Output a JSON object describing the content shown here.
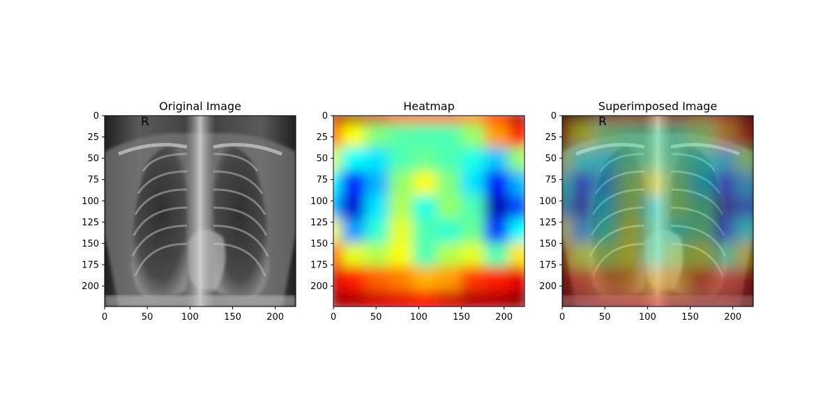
{
  "chart_data": [
    {
      "type": "heatmap",
      "title": "Original Image",
      "xlabel": "",
      "ylabel": "",
      "xlim": [
        0,
        224
      ],
      "ylim": [
        224,
        0
      ],
      "x_ticks": [
        0,
        50,
        100,
        150,
        200
      ],
      "y_ticks": [
        0,
        25,
        50,
        75,
        100,
        125,
        150,
        175,
        200
      ],
      "colormap": "gray",
      "grid": false,
      "annotations": [
        "R"
      ]
    },
    {
      "type": "heatmap",
      "title": "Heatmap",
      "xlabel": "",
      "ylabel": "",
      "xlim": [
        0,
        224
      ],
      "ylim": [
        224,
        0
      ],
      "x_ticks": [
        0,
        50,
        100,
        150,
        200
      ],
      "y_ticks": [
        0,
        25,
        50,
        75,
        100,
        125,
        150,
        175,
        200
      ],
      "colormap": "jet",
      "grid": false,
      "grid_x": [
        0,
        28,
        56,
        84,
        112,
        140,
        168,
        196,
        224
      ],
      "grid_y": [
        0,
        28,
        56,
        84,
        112,
        140,
        168,
        196,
        224
      ],
      "values": [
        [
          0.95,
          0.98,
          0.92,
          0.8,
          0.78,
          0.8,
          0.75,
          0.85,
          0.97
        ],
        [
          0.82,
          0.62,
          0.5,
          0.46,
          0.45,
          0.45,
          0.52,
          0.72,
          0.85
        ],
        [
          0.58,
          0.38,
          0.35,
          0.45,
          0.48,
          0.45,
          0.4,
          0.32,
          0.52
        ],
        [
          0.38,
          0.15,
          0.3,
          0.52,
          0.62,
          0.5,
          0.35,
          0.12,
          0.3
        ],
        [
          0.3,
          0.08,
          0.35,
          0.55,
          0.4,
          0.52,
          0.45,
          0.05,
          0.2
        ],
        [
          0.62,
          0.28,
          0.42,
          0.6,
          0.45,
          0.42,
          0.48,
          0.18,
          0.38
        ],
        [
          0.85,
          0.6,
          0.55,
          0.62,
          0.45,
          0.55,
          0.6,
          0.45,
          0.65
        ],
        [
          0.92,
          0.85,
          0.78,
          0.75,
          0.7,
          0.72,
          0.82,
          0.85,
          0.9
        ],
        [
          0.97,
          0.95,
          0.92,
          0.9,
          0.88,
          0.92,
          0.95,
          0.95,
          0.98
        ]
      ]
    },
    {
      "type": "heatmap",
      "title": "Superimposed Image",
      "xlabel": "",
      "ylabel": "",
      "xlim": [
        0,
        224
      ],
      "ylim": [
        224,
        0
      ],
      "x_ticks": [
        0,
        50,
        100,
        150,
        200
      ],
      "y_ticks": [
        0,
        25,
        50,
        75,
        100,
        125,
        150,
        175,
        200
      ],
      "colormap": "jet overlay on gray",
      "grid": false,
      "annotations": [
        "R"
      ]
    }
  ]
}
